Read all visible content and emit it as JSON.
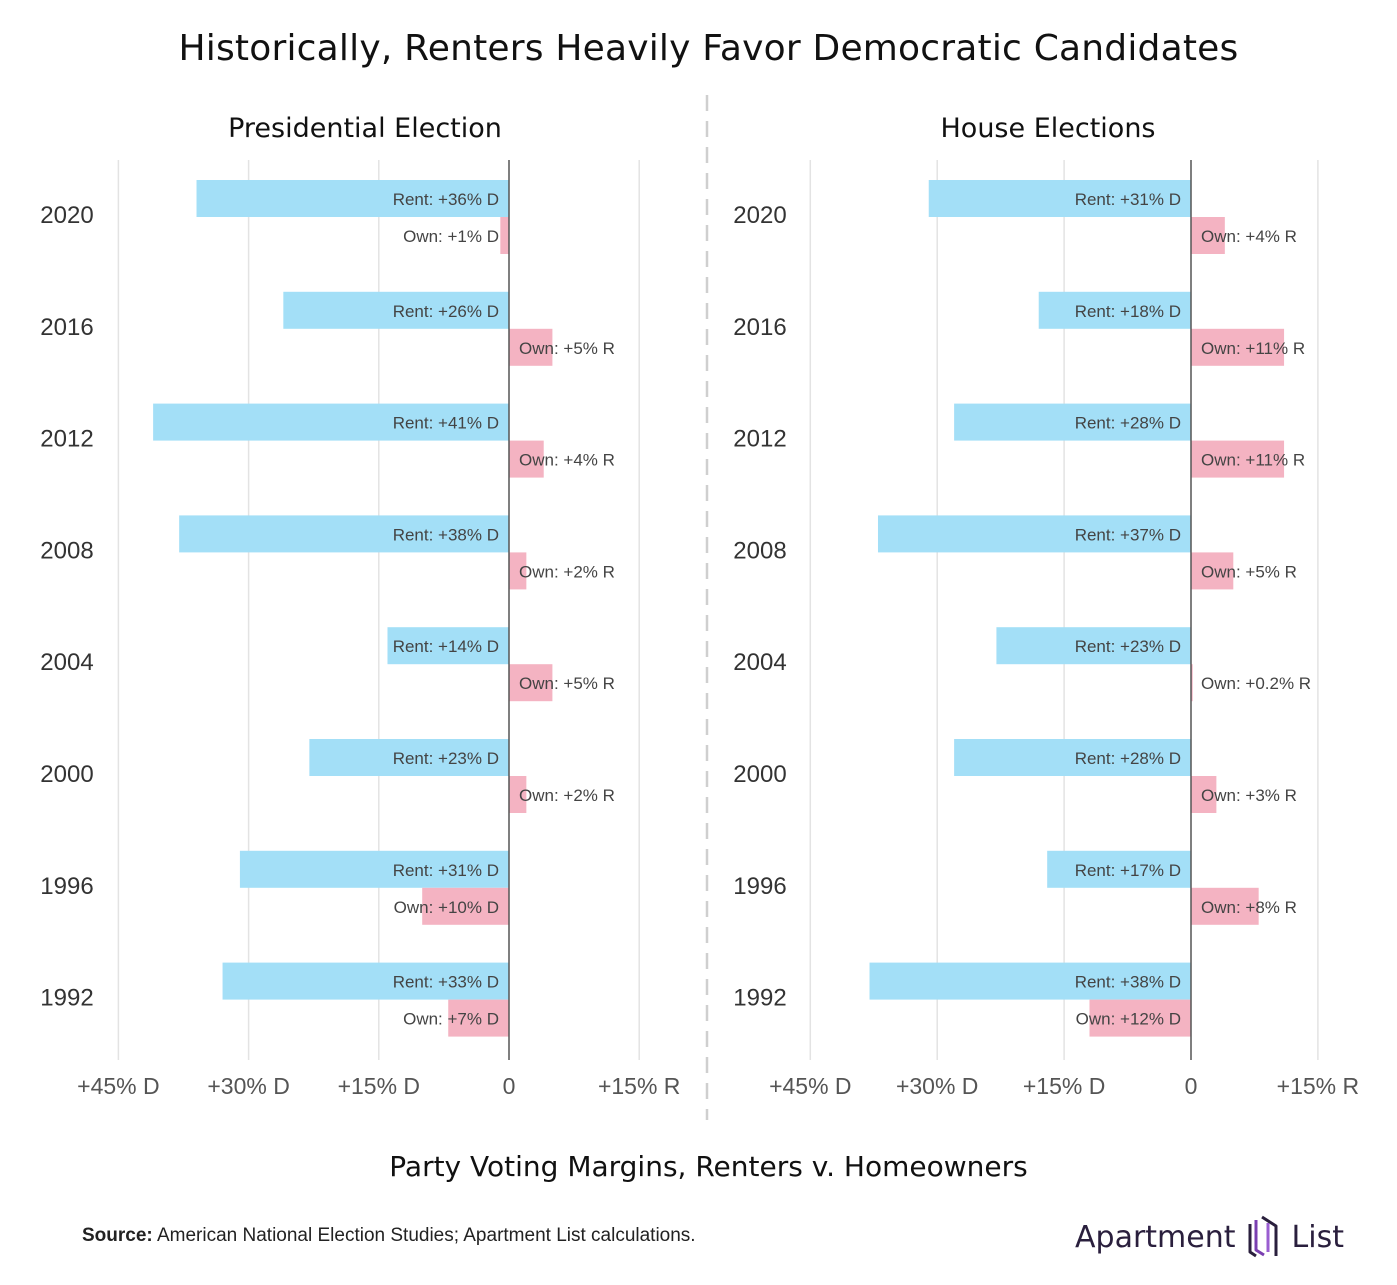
{
  "title": "Historically, Renters Heavily Favor Democratic Candidates",
  "xlabel": "Party Voting Margins, Renters v. Homeowners",
  "source_label": "Source:",
  "source_text": "American National Election Studies; Apartment List calculations.",
  "logo": {
    "left": "Apartment",
    "right": "List",
    "icon": "apartment-list-logo-icon"
  },
  "colors": {
    "rent": "#a3dff7",
    "own": "#f4b3c2",
    "axis": "#555555",
    "grid": "#e3e3e3",
    "divider": "#cfcfcf"
  },
  "chart_data": [
    {
      "type": "bar",
      "title": "Presidential Election",
      "categories": [
        "2020",
        "2016",
        "2012",
        "2008",
        "2004",
        "2000",
        "1996",
        "1992"
      ],
      "series": [
        {
          "key": "rent",
          "values": [
            -36,
            -26,
            -41,
            -38,
            -14,
            -23,
            -31,
            -33
          ],
          "labels": [
            "Rent: +36% D",
            "Rent: +26% D",
            "Rent: +41% D",
            "Rent: +38% D",
            "Rent: +14% D",
            "Rent: +23% D",
            "Rent: +31% D",
            "Rent: +33% D"
          ]
        },
        {
          "key": "own",
          "values": [
            -1,
            5,
            4,
            2,
            5,
            2,
            -10,
            -7
          ],
          "labels": [
            "Own: +1% D",
            "Own: +5% R",
            "Own: +4% R",
            "Own: +2% R",
            "Own: +5% R",
            "Own: +2% R",
            "Own: +10% D",
            "Own: +7% D"
          ]
        }
      ],
      "xlim": [
        -45,
        15
      ],
      "xticks": [
        -45,
        -30,
        -15,
        0,
        15
      ],
      "xtick_labels": [
        "+45% D",
        "+30% D",
        "+15% D",
        "0",
        "+15% R"
      ],
      "grid": true
    },
    {
      "type": "bar",
      "title": "House Elections",
      "categories": [
        "2020",
        "2016",
        "2012",
        "2008",
        "2004",
        "2000",
        "1996",
        "1992"
      ],
      "series": [
        {
          "key": "rent",
          "values": [
            -31,
            -18,
            -28,
            -37,
            -23,
            -28,
            -17,
            -38
          ],
          "labels": [
            "Rent: +31% D",
            "Rent: +18% D",
            "Rent: +28% D",
            "Rent: +37% D",
            "Rent: +23% D",
            "Rent: +28% D",
            "Rent: +17% D",
            "Rent: +38% D"
          ]
        },
        {
          "key": "own",
          "values": [
            4,
            11,
            11,
            5,
            0.2,
            3,
            8,
            -12
          ],
          "labels": [
            "Own: +4% R",
            "Own: +11% R",
            "Own: +11% R",
            "Own: +5% R",
            "Own: +0.2% R",
            "Own: +3% R",
            "Own: +8% R",
            "Own: +12% D"
          ]
        }
      ],
      "xlim": [
        -45,
        15
      ],
      "xticks": [
        -45,
        -30,
        -15,
        0,
        15
      ],
      "xtick_labels": [
        "+45% D",
        "+30% D",
        "+15% D",
        "0",
        "+15% R"
      ],
      "grid": true
    }
  ]
}
